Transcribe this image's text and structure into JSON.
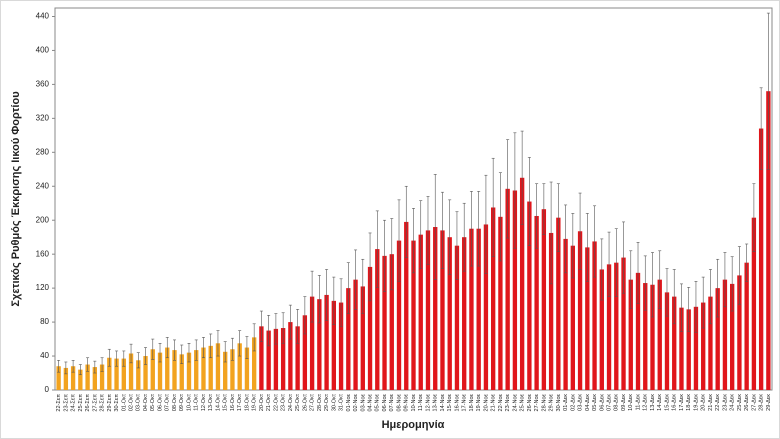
{
  "chart_data": {
    "type": "bar",
    "x_label": "Ημερομηνία",
    "y_label": "Σχετικός Ρυθμός Έκκρισης Ιικού Φορτίου",
    "categories": [
      "22-Σεπ",
      "23-Σεπ",
      "24-Σεπ",
      "25-Σεπ",
      "26-Σεπ",
      "27-Σεπ",
      "28-Σεπ",
      "29-Σεπ",
      "30-Σεπ",
      "01-Οκτ",
      "02-Οκτ",
      "03-Οκτ",
      "04-Οκτ",
      "05-Οκτ",
      "06-Οκτ",
      "07-Οκτ",
      "08-Οκτ",
      "09-Οκτ",
      "10-Οκτ",
      "11-Οκτ",
      "12-Οκτ",
      "13-Οκτ",
      "14-Οκτ",
      "15-Οκτ",
      "16-Οκτ",
      "17-Οκτ",
      "18-Οκτ",
      "19-Οκτ",
      "20-Οκτ",
      "21-Οκτ",
      "22-Οκτ",
      "23-Οκτ",
      "24-Οκτ",
      "25-Οκτ",
      "26-Οκτ",
      "27-Οκτ",
      "28-Οκτ",
      "29-Οκτ",
      "30-Οκτ",
      "31-Οκτ",
      "01-Νοε",
      "02-Νοε",
      "03-Νοε",
      "04-Νοε",
      "05-Νοε",
      "06-Νοε",
      "07-Νοε",
      "08-Νοε",
      "09-Νοε",
      "10-Νοε",
      "11-Νοε",
      "12-Νοε",
      "13-Νοε",
      "14-Νοε",
      "15-Νοε",
      "16-Νοε",
      "17-Νοε",
      "18-Νοε",
      "19-Νοε",
      "20-Νοε",
      "21-Νοε",
      "22-Νοε",
      "23-Νοε",
      "24-Νοε",
      "25-Νοε",
      "26-Νοε",
      "27-Νοε",
      "28-Νοε",
      "29-Νοε",
      "30-Νοε",
      "01-Δεκ",
      "02-Δεκ",
      "03-Δεκ",
      "04-Δεκ",
      "05-Δεκ",
      "06-Δεκ",
      "07-Δεκ",
      "08-Δεκ",
      "09-Δεκ",
      "10-Δεκ",
      "11-Δεκ",
      "12-Δεκ",
      "13-Δεκ",
      "14-Δεκ",
      "15-Δεκ",
      "16-Δεκ",
      "17-Δεκ",
      "18-Δεκ",
      "19-Δεκ",
      "20-Δεκ",
      "21-Δεκ",
      "22-Δεκ",
      "23-Δεκ",
      "24-Δεκ",
      "25-Δεκ",
      "26-Δεκ",
      "27-Δεκ",
      "28-Δεκ",
      "29-Δεκ"
    ],
    "values": [
      28,
      26,
      28,
      24,
      30,
      27,
      30,
      38,
      37,
      37,
      43,
      35,
      40,
      48,
      44,
      50,
      47,
      42,
      44,
      47,
      50,
      52,
      55,
      45,
      48,
      55,
      50,
      62,
      75,
      70,
      72,
      73,
      80,
      75,
      88,
      110,
      107,
      112,
      105,
      103,
      120,
      130,
      122,
      145,
      166,
      158,
      160,
      176,
      198,
      176,
      183,
      188,
      192,
      188,
      180,
      170,
      180,
      190,
      190,
      195,
      215,
      204,
      237,
      235,
      250,
      222,
      205,
      213,
      185,
      203,
      178,
      170,
      187,
      168,
      175,
      142,
      148,
      150,
      156,
      130,
      138,
      126,
      124,
      130,
      115,
      110,
      97,
      95,
      98,
      103,
      110,
      120,
      130,
      125,
      135,
      150,
      203,
      308,
      352
    ],
    "errors": [
      7,
      7,
      7,
      6,
      8,
      7,
      8,
      10,
      9,
      9,
      11,
      9,
      10,
      12,
      11,
      12,
      12,
      11,
      11,
      12,
      12,
      14,
      15,
      12,
      13,
      15,
      13,
      16,
      18,
      18,
      18,
      18,
      20,
      20,
      22,
      30,
      28,
      30,
      28,
      28,
      30,
      35,
      32,
      40,
      45,
      42,
      42,
      48,
      42,
      38,
      40,
      40,
      62,
      45,
      44,
      40,
      40,
      44,
      44,
      58,
      58,
      52,
      58,
      68,
      55,
      52,
      38,
      30,
      60,
      40,
      40,
      38,
      45,
      40,
      42,
      36,
      38,
      40,
      42,
      34,
      36,
      32,
      38,
      34,
      28,
      32,
      28,
      26,
      30,
      30,
      32,
      34,
      32,
      32,
      34,
      22,
      40,
      48,
      92
    ],
    "colors": [
      "#f2a31f",
      "#f2a31f",
      "#f2a31f",
      "#f2a31f",
      "#f2a31f",
      "#f2a31f",
      "#f2a31f",
      "#f2a31f",
      "#f2a31f",
      "#f2a31f",
      "#f2a31f",
      "#f2a31f",
      "#f2a31f",
      "#f2a31f",
      "#f2a31f",
      "#f2a31f",
      "#f2a31f",
      "#f2a31f",
      "#f2a31f",
      "#f2a31f",
      "#f2a31f",
      "#f2a31f",
      "#f2a31f",
      "#f2a31f",
      "#f2a31f",
      "#f2a31f",
      "#f2a31f",
      "#f2a31f",
      "#e0161b",
      "#e0161b",
      "#e0161b",
      "#e0161b",
      "#e0161b",
      "#e0161b",
      "#e0161b",
      "#e0161b",
      "#e0161b",
      "#e0161b",
      "#e0161b",
      "#e0161b",
      "#e0161b",
      "#e0161b",
      "#e0161b",
      "#e0161b",
      "#e0161b",
      "#e0161b",
      "#e0161b",
      "#e0161b",
      "#e0161b",
      "#e0161b",
      "#e0161b",
      "#e0161b",
      "#e0161b",
      "#e0161b",
      "#e0161b",
      "#e0161b",
      "#e0161b",
      "#e0161b",
      "#e0161b",
      "#e0161b",
      "#e0161b",
      "#e0161b",
      "#e0161b",
      "#e0161b",
      "#e0161b",
      "#e0161b",
      "#e0161b",
      "#e0161b",
      "#e0161b",
      "#e0161b",
      "#e0161b",
      "#e0161b",
      "#e0161b",
      "#e0161b",
      "#e0161b",
      "#e0161b",
      "#e0161b",
      "#e0161b",
      "#e0161b",
      "#e0161b",
      "#e0161b",
      "#e0161b",
      "#e0161b",
      "#e0161b",
      "#e0161b",
      "#e0161b",
      "#e0161b",
      "#e0161b",
      "#e0161b",
      "#e0161b",
      "#e0161b",
      "#e0161b",
      "#e0161b",
      "#e0161b",
      "#e0161b",
      "#e0161b",
      "#e0161b",
      "#e0161b",
      "#e0161b"
    ],
    "ylim": [
      0,
      450
    ],
    "yticks": [
      0,
      40,
      80,
      120,
      160,
      200,
      240,
      280,
      320,
      360,
      400,
      440
    ],
    "grid": false
  }
}
